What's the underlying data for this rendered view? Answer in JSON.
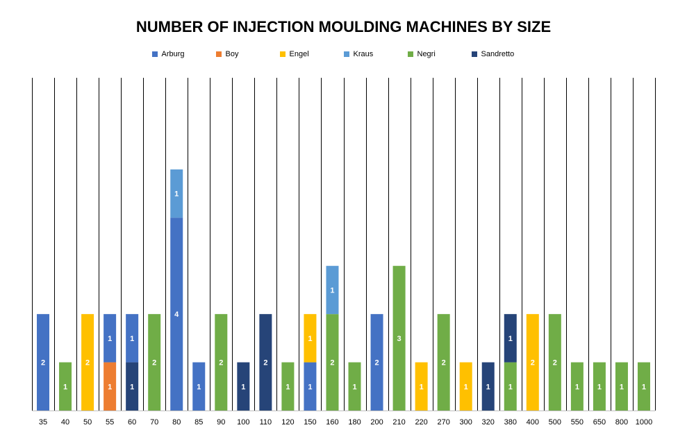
{
  "chart_data": {
    "type": "bar",
    "stacked": true,
    "title": "NUMBER OF INJECTION MOULDING MACHINES BY SIZE",
    "xlabel": "",
    "ylabel": "",
    "ylim": [
      0,
      6.9
    ],
    "grid": "vertical category separators",
    "legend_position": "top",
    "categories": [
      "35",
      "40",
      "50",
      "55",
      "60",
      "70",
      "80",
      "85",
      "90",
      "100",
      "110",
      "120",
      "150",
      "160",
      "180",
      "200",
      "210",
      "220",
      "270",
      "300",
      "320",
      "380",
      "400",
      "500",
      "550",
      "650",
      "800",
      "1000"
    ],
    "series": [
      {
        "name": "Arburg",
        "color": "#4472C4",
        "values": [
          2,
          0,
          0,
          1,
          1,
          0,
          4,
          1,
          0,
          0,
          0,
          0,
          1,
          0,
          0,
          2,
          0,
          0,
          0,
          0,
          0,
          0,
          0,
          0,
          0,
          0,
          0,
          0
        ]
      },
      {
        "name": "Boy",
        "color": "#ED7D31",
        "values": [
          0,
          0,
          0,
          1,
          0,
          0,
          0,
          0,
          0,
          0,
          0,
          0,
          0,
          0,
          0,
          0,
          0,
          0,
          0,
          0,
          0,
          0,
          0,
          0,
          0,
          0,
          0,
          0
        ]
      },
      {
        "name": "Engel",
        "color": "#FFC000",
        "values": [
          0,
          0,
          2,
          0,
          0,
          0,
          0,
          0,
          0,
          0,
          0,
          0,
          1,
          0,
          0,
          0,
          0,
          1,
          0,
          1,
          0,
          0,
          2,
          0,
          0,
          0,
          0,
          0
        ]
      },
      {
        "name": "Kraus",
        "color": "#5B9BD5",
        "values": [
          0,
          0,
          0,
          0,
          0,
          0,
          1,
          0,
          0,
          0,
          0,
          0,
          0,
          1,
          0,
          0,
          0,
          0,
          0,
          0,
          0,
          0,
          0,
          0,
          0,
          0,
          0,
          0
        ]
      },
      {
        "name": "Negri",
        "color": "#70AD47",
        "values": [
          0,
          1,
          0,
          0,
          0,
          2,
          0,
          0,
          2,
          0,
          0,
          1,
          0,
          2,
          1,
          0,
          3,
          0,
          2,
          0,
          0,
          1,
          0,
          2,
          1,
          1,
          1,
          1
        ]
      },
      {
        "name": "Sandretto",
        "color": "#264478",
        "values": [
          0,
          0,
          0,
          0,
          1,
          0,
          0,
          0,
          0,
          1,
          2,
          0,
          0,
          0,
          0,
          0,
          0,
          0,
          0,
          0,
          1,
          1,
          0,
          0,
          0,
          0,
          0,
          0
        ]
      }
    ],
    "stack_order": [
      [
        "Arburg"
      ],
      [
        "Negri"
      ],
      [
        "Engel"
      ],
      [
        "Boy",
        "Arburg"
      ],
      [
        "Sandretto",
        "Arburg"
      ],
      [
        "Negri"
      ],
      [
        "Arburg",
        "Kraus"
      ],
      [
        "Arburg"
      ],
      [
        "Negri"
      ],
      [
        "Sandretto"
      ],
      [
        "Sandretto"
      ],
      [
        "Negri"
      ],
      [
        "Arburg",
        "Engel"
      ],
      [
        "Negri",
        "Kraus"
      ],
      [
        "Negri"
      ],
      [
        "Arburg"
      ],
      [
        "Negri"
      ],
      [
        "Engel"
      ],
      [
        "Negri"
      ],
      [
        "Engel"
      ],
      [
        "Sandretto"
      ],
      [
        "Negri",
        "Sandretto"
      ],
      [
        "Engel"
      ],
      [
        "Negri"
      ],
      [
        "Negri"
      ],
      [
        "Negri"
      ],
      [
        "Negri"
      ],
      [
        "Negri"
      ]
    ]
  }
}
